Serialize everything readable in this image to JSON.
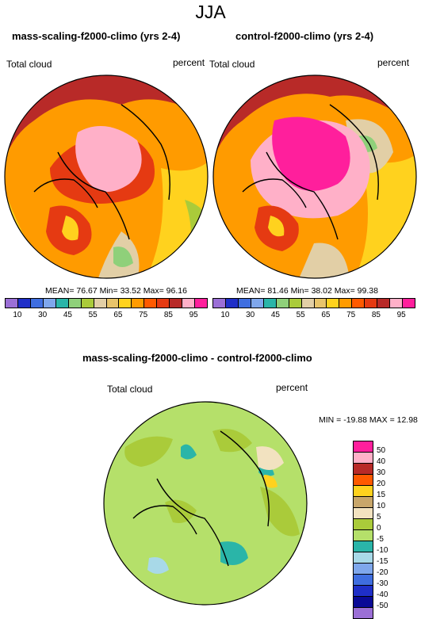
{
  "season": "JJA",
  "panel_left": {
    "title": "mass-scaling-f2000-climo (yrs 2-4)",
    "var_label": "Total cloud",
    "units": "percent",
    "mean_label": "MEAN=",
    "mean": "76.67",
    "min_label": "Min=",
    "min": "33.52",
    "max_label": "Max=",
    "max": "96.16"
  },
  "panel_right": {
    "title": "control-f2000-climo (yrs 2-4)",
    "var_label": "Total cloud",
    "units": "percent",
    "mean_label": "MEAN=",
    "mean": "81.46",
    "min_label": "Min=",
    "min": "38.02",
    "max_label": "Max=",
    "max": "99.38"
  },
  "colorbar_abs": {
    "ticks": [
      "10",
      "30",
      "45",
      "55",
      "65",
      "75",
      "85",
      "95"
    ],
    "colors": [
      "#9b6fd6",
      "#1f2fc8",
      "#3f6ee0",
      "#7fa7ec",
      "#2ab5a8",
      "#8fd07a",
      "#aacb3a",
      "#e2cfa6",
      "#e8c46a",
      "#ffd21e",
      "#ff9b00",
      "#ff5a00",
      "#e53a12",
      "#b82a28",
      "#ffb0c8",
      "#ff1f9c"
    ]
  },
  "panel_diff": {
    "title": "mass-scaling-f2000-climo - control-f2000-climo",
    "var_label": "Total cloud",
    "units": "percent",
    "minmax": "MIN = -19.88  MAX =  12.98"
  },
  "colorbar_diff": {
    "labels": [
      "50",
      "40",
      "30",
      "20",
      "15",
      "10",
      "5",
      "0",
      "-5",
      "-10",
      "-15",
      "-20",
      "-30",
      "-40",
      "-50"
    ],
    "colors": [
      "#ff1f9c",
      "#ffb0c8",
      "#b82a28",
      "#ff5a00",
      "#ffd21e",
      "#c8a66a",
      "#f2e2c0",
      "#aacb3a",
      "#b5e06a",
      "#2ab5a8",
      "#a8d9e8",
      "#7fa7ec",
      "#3f6ee0",
      "#1f2fc8",
      "#0a0a96",
      "#9b6fd6"
    ]
  }
}
